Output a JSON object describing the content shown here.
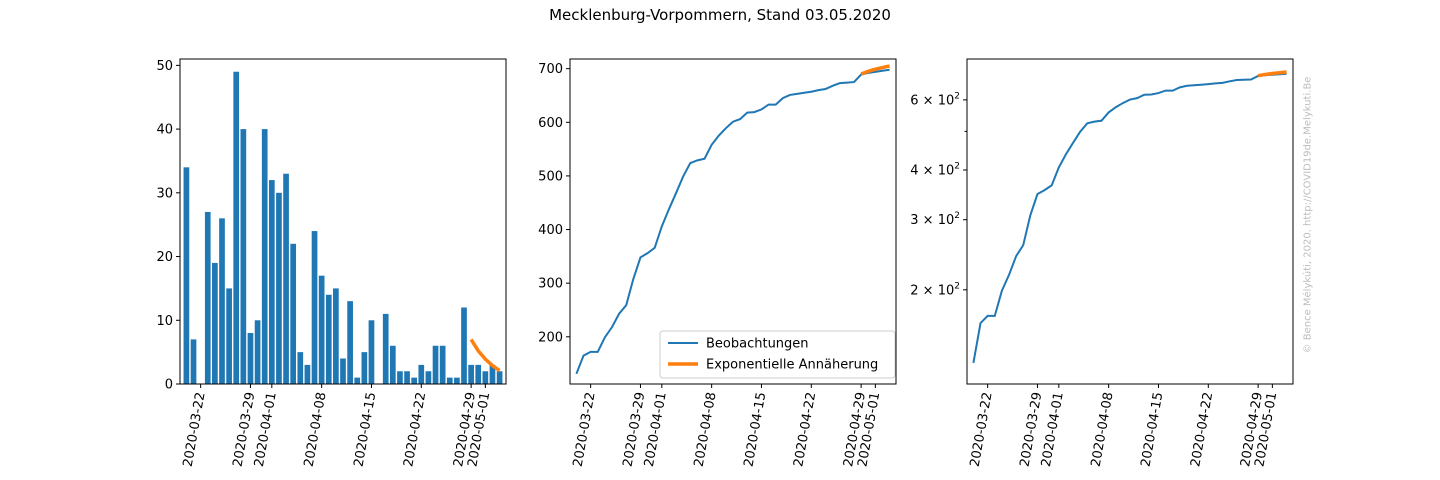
{
  "figure": {
    "title": "Mecklenburg-Vorpommern, Stand 03.05.2020",
    "watermark": "© Bence Mélykúti, 2020. http://COVID19de.Melykuti.Be"
  },
  "colors": {
    "observed": "#1f77b4",
    "fit": "#ff7f0e",
    "axis": "#000000"
  },
  "chart_data": [
    {
      "type": "bar",
      "x": [
        "2020-03-20",
        "2020-03-21",
        "2020-03-22",
        "2020-03-23",
        "2020-03-24",
        "2020-03-25",
        "2020-03-26",
        "2020-03-27",
        "2020-03-28",
        "2020-03-29",
        "2020-03-30",
        "2020-03-31",
        "2020-04-01",
        "2020-04-02",
        "2020-04-03",
        "2020-04-04",
        "2020-04-05",
        "2020-04-06",
        "2020-04-07",
        "2020-04-08",
        "2020-04-09",
        "2020-04-10",
        "2020-04-11",
        "2020-04-12",
        "2020-04-13",
        "2020-04-14",
        "2020-04-15",
        "2020-04-16",
        "2020-04-17",
        "2020-04-18",
        "2020-04-19",
        "2020-04-20",
        "2020-04-21",
        "2020-04-22",
        "2020-04-23",
        "2020-04-24",
        "2020-04-25",
        "2020-04-26",
        "2020-04-27",
        "2020-04-28",
        "2020-04-29",
        "2020-04-30",
        "2020-05-01",
        "2020-05-02",
        "2020-05-03"
      ],
      "values": [
        34,
        7,
        0,
        27,
        19,
        26,
        15,
        49,
        40,
        8,
        10,
        40,
        32,
        30,
        33,
        22,
        5,
        3,
        24,
        17,
        14,
        15,
        4,
        13,
        1,
        5,
        10,
        0,
        11,
        6,
        2,
        2,
        1,
        3,
        2,
        6,
        6,
        1,
        1,
        12,
        3,
        3,
        2,
        3,
        2
      ],
      "fit": {
        "x": [
          "2020-04-29",
          "2020-04-30",
          "2020-05-01",
          "2020-05-02",
          "2020-05-03"
        ],
        "values": [
          7,
          5.2,
          3.9,
          2.9,
          2.1
        ]
      },
      "ylim": [
        0,
        51
      ],
      "yticks": [
        0,
        10,
        20,
        30,
        40,
        50
      ],
      "xticks": [
        "2020-03-22",
        "2020-03-29",
        "2020-04-01",
        "2020-04-08",
        "2020-04-15",
        "2020-04-22",
        "2020-04-29",
        "2020-05-01"
      ],
      "xlabel": "",
      "ylabel": "",
      "title": ""
    },
    {
      "type": "line",
      "x": [
        "2020-03-20",
        "2020-03-21",
        "2020-03-22",
        "2020-03-23",
        "2020-03-24",
        "2020-03-25",
        "2020-03-26",
        "2020-03-27",
        "2020-03-28",
        "2020-03-29",
        "2020-03-30",
        "2020-03-31",
        "2020-04-01",
        "2020-04-02",
        "2020-04-03",
        "2020-04-04",
        "2020-04-05",
        "2020-04-06",
        "2020-04-07",
        "2020-04-08",
        "2020-04-09",
        "2020-04-10",
        "2020-04-11",
        "2020-04-12",
        "2020-04-13",
        "2020-04-14",
        "2020-04-15",
        "2020-04-16",
        "2020-04-17",
        "2020-04-18",
        "2020-04-19",
        "2020-04-20",
        "2020-04-21",
        "2020-04-22",
        "2020-04-23",
        "2020-04-24",
        "2020-04-25",
        "2020-04-26",
        "2020-04-27",
        "2020-04-28",
        "2020-04-29",
        "2020-04-30",
        "2020-05-01",
        "2020-05-02",
        "2020-05-03"
      ],
      "series": [
        {
          "name": "Beobachtungen",
          "values": [
            131,
            165,
            172,
            172,
            199,
            218,
            243,
            259,
            308,
            348,
            356,
            366,
            406,
            438,
            468,
            499,
            524,
            529,
            532,
            558,
            575,
            589,
            601,
            606,
            618,
            619,
            624,
            633,
            633,
            645,
            651,
            653,
            655,
            657,
            660,
            662,
            668,
            673,
            674,
            675,
            689,
            692,
            694,
            696,
            698
          ]
        },
        {
          "name": "Exponentielle Annäherung",
          "x": [
            "2020-04-29",
            "2020-04-30",
            "2020-05-01",
            "2020-05-02",
            "2020-05-03"
          ],
          "values": [
            690,
            695,
            699,
            702,
            705
          ]
        }
      ],
      "ylim": [
        112,
        718
      ],
      "yticks": [
        200,
        300,
        400,
        500,
        600,
        700
      ],
      "xticks": [
        "2020-03-22",
        "2020-03-29",
        "2020-04-01",
        "2020-04-08",
        "2020-04-15",
        "2020-04-22",
        "2020-04-29",
        "2020-05-01"
      ],
      "legend": "lower-right",
      "xlabel": "",
      "ylabel": "",
      "title": ""
    },
    {
      "type": "line",
      "scale": "log",
      "x": "same as panel 2",
      "series_from_panel": 2,
      "ylim": [
        116,
        760
      ],
      "yticks_major": [
        {
          "value": 200,
          "label": "2 × 10^2"
        },
        {
          "value": 300,
          "label": "3 × 10^2"
        },
        {
          "value": 400,
          "label": "4 × 10^2"
        },
        {
          "value": 600,
          "label": "6 × 10^2"
        }
      ],
      "yticks_minor": [
        500
      ],
      "xticks": [
        "2020-03-22",
        "2020-03-29",
        "2020-04-01",
        "2020-04-08",
        "2020-04-15",
        "2020-04-22",
        "2020-04-29",
        "2020-05-01"
      ],
      "xlabel": "",
      "ylabel": "",
      "title": ""
    }
  ]
}
